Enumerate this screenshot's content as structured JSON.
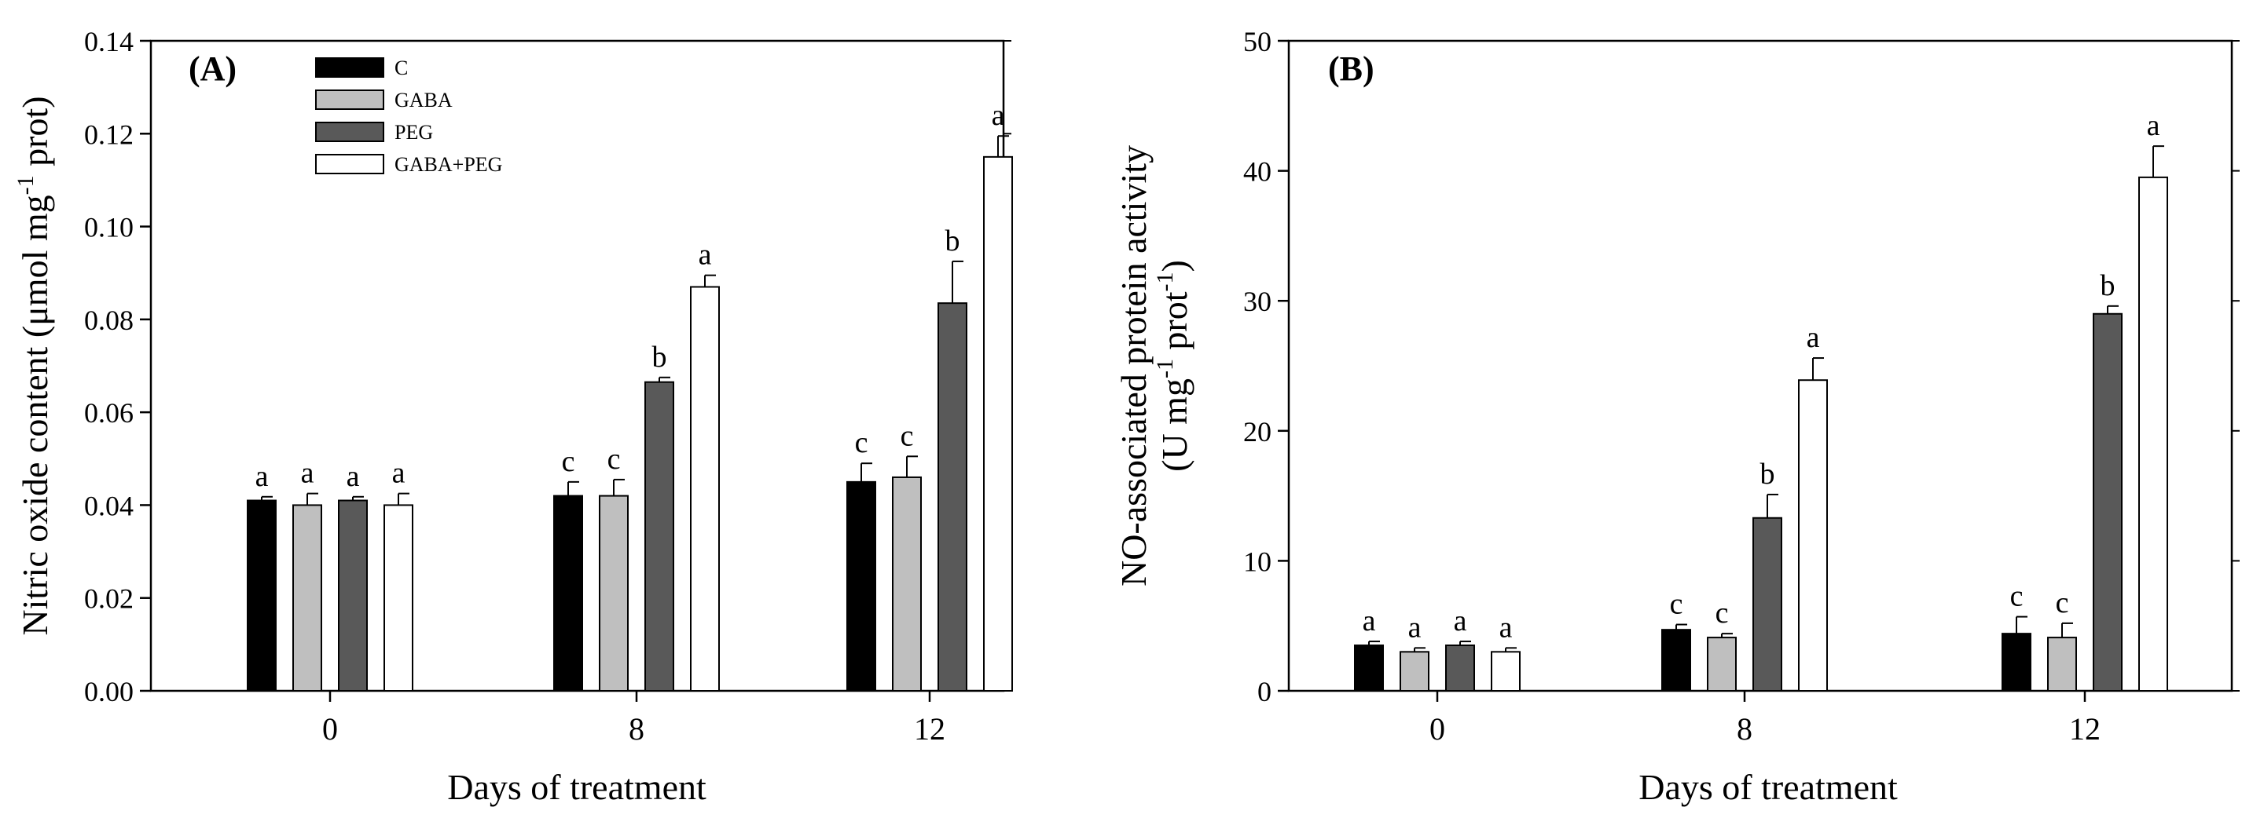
{
  "chart_data": [
    {
      "panel": "(A)",
      "type": "bar",
      "xlabel": "Days of treatment",
      "ylabel_main": "Nitric oxide content (μmol mg",
      "ylabel_sup": "-1",
      "ylabel_tail": " prot)",
      "ylim": [
        0,
        0.14
      ],
      "yticks": [
        0.0,
        0.02,
        0.04,
        0.06,
        0.08,
        0.1,
        0.12,
        0.14
      ],
      "ytick_labels": [
        "0.00",
        "0.02",
        "0.04",
        "0.06",
        "0.08",
        "0.10",
        "0.12",
        "0.14"
      ],
      "categories": [
        "0",
        "8",
        "12"
      ],
      "legend": {
        "placement": "top-left",
        "show": true
      },
      "series": [
        {
          "name": "C",
          "color": "#000000",
          "values": [
            0.041,
            0.042,
            0.045
          ],
          "errors": [
            0.0008,
            0.003,
            0.004
          ],
          "letters": [
            "a",
            "c",
            "c"
          ]
        },
        {
          "name": "GABA",
          "color": "#bfbfbf",
          "values": [
            0.04,
            0.042,
            0.046
          ],
          "errors": [
            0.0025,
            0.0035,
            0.0045
          ],
          "letters": [
            "a",
            "c",
            "c"
          ]
        },
        {
          "name": "PEG",
          "color": "#595959",
          "values": [
            0.041,
            0.0665,
            0.0835
          ],
          "errors": [
            0.0008,
            0.001,
            0.009
          ],
          "letters": [
            "a",
            "b",
            "b"
          ]
        },
        {
          "name": "GABA+PEG",
          "color": "#ffffff",
          "values": [
            0.04,
            0.087,
            0.115
          ],
          "errors": [
            0.0025,
            0.0025,
            0.0045
          ],
          "letters": [
            "a",
            "a",
            "a"
          ]
        }
      ]
    },
    {
      "panel": "(B)",
      "type": "bar",
      "xlabel": "Days of treatment",
      "ylabel_line1": "NO-associated protein activity",
      "ylabel_line2_a": "(U mg",
      "ylabel_line2_sup1": "-1",
      "ylabel_line2_b": " prot",
      "ylabel_line2_sup2": "-1",
      "ylabel_line2_c": ")",
      "ylim": [
        0,
        50
      ],
      "yticks": [
        0,
        10,
        20,
        30,
        40,
        50
      ],
      "ytick_labels": [
        "0",
        "10",
        "20",
        "30",
        "40",
        "50"
      ],
      "categories": [
        "0",
        "8",
        "12"
      ],
      "legend": {
        "show": false
      },
      "series": [
        {
          "name": "C",
          "color": "#000000",
          "values": [
            3.5,
            4.7,
            4.4
          ],
          "errors": [
            0.3,
            0.4,
            1.3
          ],
          "letters": [
            "a",
            "c",
            "c"
          ]
        },
        {
          "name": "GABA",
          "color": "#bfbfbf",
          "values": [
            3.0,
            4.1,
            4.1
          ],
          "errors": [
            0.3,
            0.3,
            1.1
          ],
          "letters": [
            "a",
            "c",
            "c"
          ]
        },
        {
          "name": "PEG",
          "color": "#595959",
          "values": [
            3.5,
            13.3,
            29.0
          ],
          "errors": [
            0.3,
            1.8,
            0.6
          ],
          "letters": [
            "a",
            "b",
            "b"
          ]
        },
        {
          "name": "GABA+PEG",
          "color": "#ffffff",
          "values": [
            3.0,
            23.9,
            39.5
          ],
          "errors": [
            0.3,
            1.7,
            2.4
          ],
          "letters": [
            "a",
            "a",
            "a"
          ]
        }
      ]
    }
  ]
}
